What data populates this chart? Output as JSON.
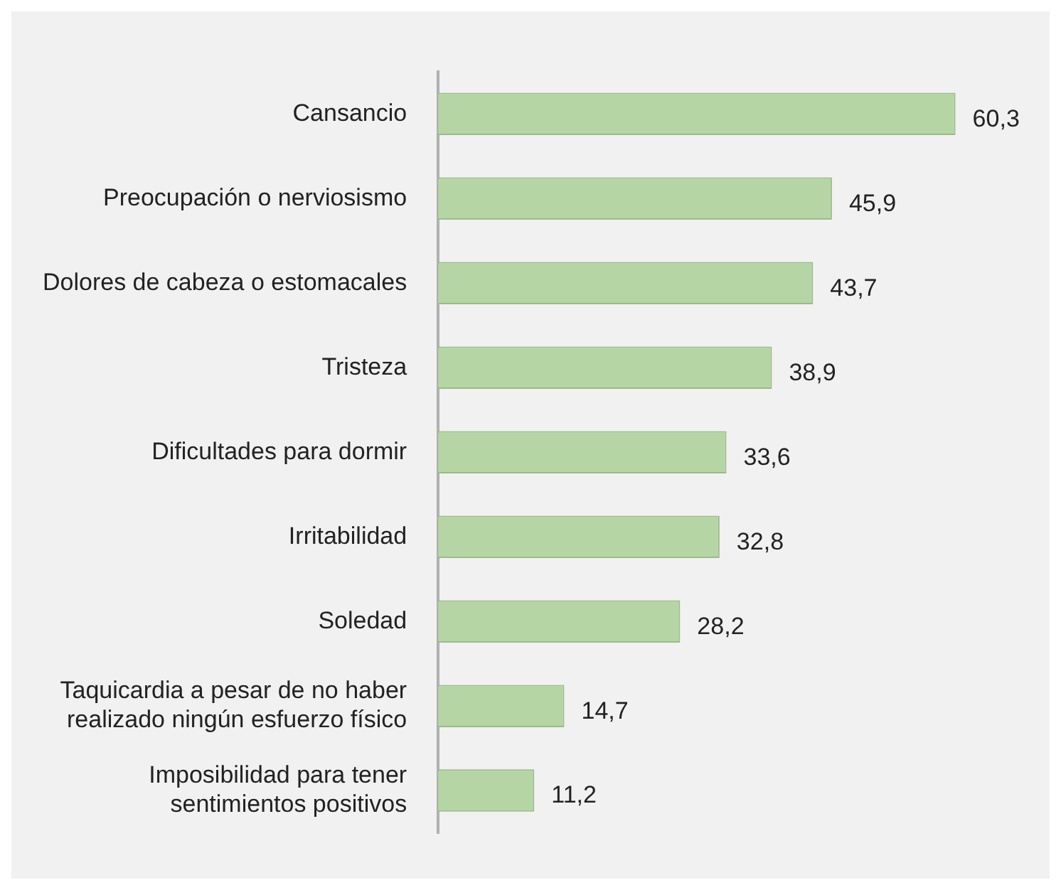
{
  "chart_data": {
    "type": "bar",
    "orientation": "horizontal",
    "categories": [
      "Cansancio",
      "Preocupación o nerviosismo",
      "Dolores de cabeza o estomacales",
      "Tristeza",
      "Dificultades para dormir",
      "Irritabilidad",
      "Soledad",
      "Taquicardia a pesar de no haber realizado ningún esfuerzo físico",
      "Imposibilidad para tener sentimientos positivos"
    ],
    "values": [
      60.3,
      45.9,
      43.7,
      38.9,
      33.6,
      32.8,
      28.2,
      14.7,
      11.2
    ],
    "value_labels": [
      "60,3",
      "45,9",
      "43,7",
      "38,9",
      "33,6",
      "32,8",
      "28,2",
      "14,7",
      "11,2"
    ],
    "color": "#b5d5a5"
  }
}
